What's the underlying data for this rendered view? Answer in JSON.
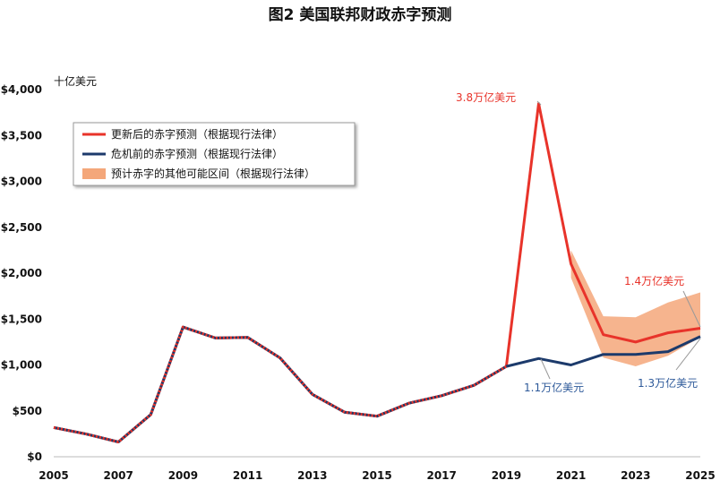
{
  "chart_data": {
    "type": "line",
    "title": "图2 美国联邦财政赤字预测",
    "ylabel": "十亿美元",
    "xlabel": "",
    "x": [
      2005,
      2006,
      2007,
      2008,
      2009,
      2010,
      2011,
      2012,
      2013,
      2014,
      2015,
      2016,
      2017,
      2018,
      2019,
      2020,
      2021,
      2022,
      2023,
      2024,
      2025
    ],
    "xticks": [
      "2005",
      "2007",
      "2009",
      "2011",
      "2013",
      "2015",
      "2017",
      "2019",
      "2021",
      "2023",
      "2025"
    ],
    "yticks": [
      "$0",
      "$500",
      "$1,000",
      "$1,500",
      "$2,000",
      "$2,500",
      "$3,000",
      "$3,500",
      "$4,000"
    ],
    "ylim": [
      0,
      4000
    ],
    "xlim": [
      2005,
      2025
    ],
    "series": [
      {
        "name": "更新后的赤字预测（根据现行法律）",
        "color": "#e8332a",
        "x": [
          2005,
          2006,
          2007,
          2008,
          2009,
          2010,
          2011,
          2012,
          2013,
          2014,
          2015,
          2016,
          2017,
          2018,
          2019,
          2020,
          2021,
          2022,
          2023,
          2024,
          2025
        ],
        "values": [
          318,
          248,
          161,
          459,
          1413,
          1294,
          1300,
          1077,
          680,
          485,
          442,
          585,
          665,
          779,
          984,
          3848,
          2100,
          1330,
          1250,
          1350,
          1400
        ]
      },
      {
        "name": "危机前的赤字预测（根据现行法律）",
        "color": "#1c3a6b",
        "x": [
          2005,
          2006,
          2007,
          2008,
          2009,
          2010,
          2011,
          2012,
          2013,
          2014,
          2015,
          2016,
          2017,
          2018,
          2019,
          2020,
          2021,
          2022,
          2023,
          2024,
          2025
        ],
        "values": [
          318,
          248,
          161,
          459,
          1413,
          1294,
          1300,
          1077,
          680,
          485,
          442,
          585,
          665,
          779,
          984,
          1070,
          1000,
          1115,
          1115,
          1145,
          1310
        ]
      }
    ],
    "band": {
      "name": "预计赤字的其他可能区间（根据现行法律）",
      "color": "#f4a77a",
      "x": [
        2021,
        2022,
        2023,
        2024,
        2025
      ],
      "upper": [
        2250,
        1530,
        1520,
        1680,
        1790
      ],
      "lower": [
        1950,
        1080,
        985,
        1100,
        1300
      ]
    },
    "annotations": [
      {
        "text": "3.8万亿美元",
        "color": "#e8332a"
      },
      {
        "text": "1.4万亿美元",
        "color": "#e8332a"
      },
      {
        "text": "1.1万亿美元",
        "color": "#2e5a9a"
      },
      {
        "text": "1.3万亿美元",
        "color": "#2e5a9a"
      }
    ],
    "legend_position": "top-left",
    "grid": false
  }
}
